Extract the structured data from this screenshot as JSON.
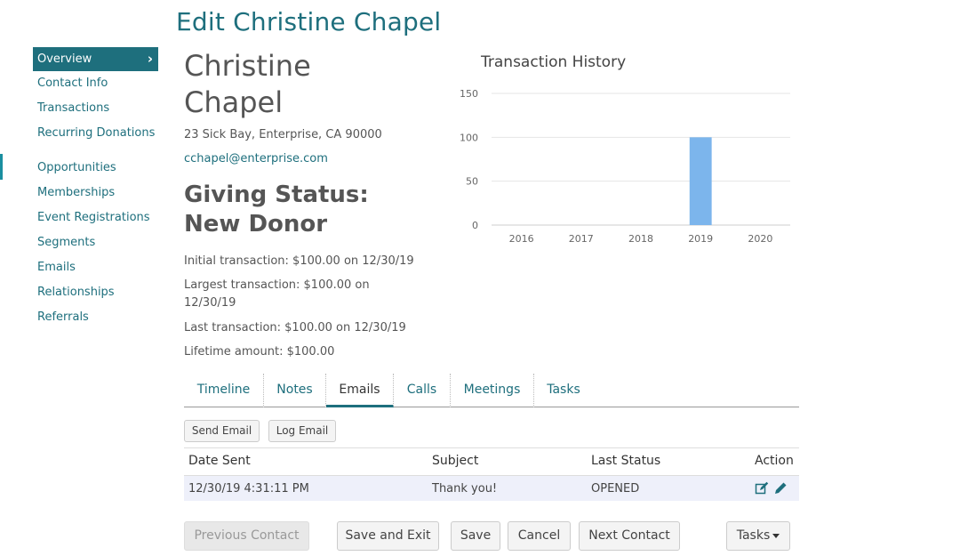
{
  "page_title": "Edit Christine Chapel",
  "sidebar": {
    "items": [
      {
        "label": "Overview",
        "active": true
      },
      {
        "label": "Contact Info"
      },
      {
        "label": "Transactions"
      },
      {
        "label": "Recurring Donations"
      },
      {
        "label": "Opportunities"
      },
      {
        "label": "Memberships"
      },
      {
        "label": "Event Registrations"
      },
      {
        "label": "Segments"
      },
      {
        "label": "Emails"
      },
      {
        "label": "Relationships"
      },
      {
        "label": "Referrals"
      }
    ],
    "active_chevron": "›"
  },
  "contact": {
    "name": "Christine Chapel",
    "address": "23 Sick Bay, Enterprise, CA 90000",
    "email": "cchapel@enterprise.com",
    "giving_status": "Giving Status: New Donor",
    "initial_transaction": "Initial transaction:  $100.00 on 12/30/19",
    "largest_transaction": "Largest transaction:  $100.00 on 12/30/19",
    "last_transaction": "Last transaction:  $100.00 on 12/30/19",
    "lifetime_amount": "Lifetime amount:  $100.00"
  },
  "chart_data": {
    "type": "bar",
    "title": "Transaction History",
    "categories": [
      "2016",
      "2017",
      "2018",
      "2019",
      "2020"
    ],
    "values": [
      0,
      0,
      0,
      100,
      0
    ],
    "ylim": [
      0,
      150
    ],
    "yticks": [
      0,
      50,
      100,
      150
    ],
    "grid": true,
    "bar_color": "#7cb5ec"
  },
  "tabs": [
    {
      "label": "Timeline"
    },
    {
      "label": "Notes"
    },
    {
      "label": "Emails",
      "active": true
    },
    {
      "label": "Calls"
    },
    {
      "label": "Meetings"
    },
    {
      "label": "Tasks"
    }
  ],
  "email_actions": {
    "send_label": "Send Email",
    "log_label": "Log Email"
  },
  "email_table": {
    "columns": [
      "Date Sent",
      "Subject",
      "Last Status",
      "Action"
    ],
    "rows": [
      {
        "date_sent": "12/30/19 4:31:11 PM",
        "subject": "Thank you!",
        "status": "OPENED",
        "actions": [
          "edit-icon",
          "pencil-icon"
        ]
      }
    ]
  },
  "footer": {
    "previous_label": "Previous Contact",
    "save_exit_label": "Save and Exit",
    "save_label": "Save",
    "cancel_label": "Cancel",
    "next_label": "Next Contact",
    "tasks_label": "Tasks"
  },
  "colors": {
    "brand": "#1e6f7d",
    "bar": "#7cb5ec"
  }
}
